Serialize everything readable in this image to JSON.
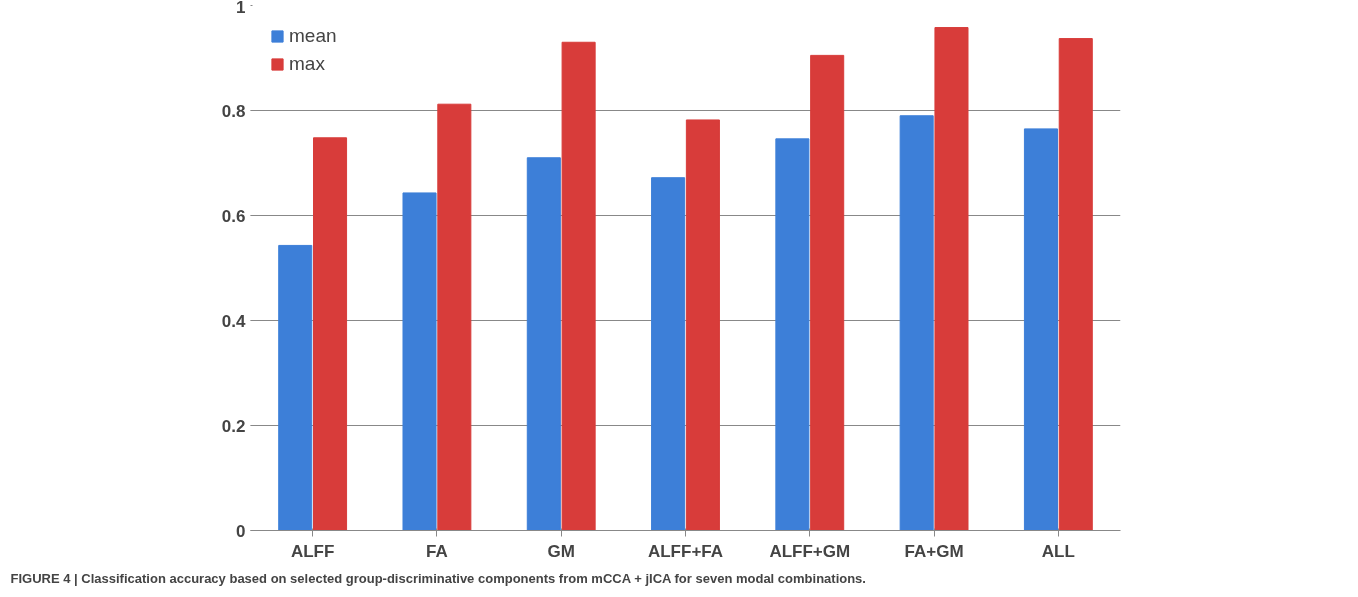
{
  "chart_data": {
    "type": "bar",
    "categories": [
      "ALFF",
      "FA",
      "GM",
      "ALFF+FA",
      "ALFF+GM",
      "FA+GM",
      "ALL"
    ],
    "series": [
      {
        "name": "mean",
        "color": "#3d7fd8",
        "values": [
          0.543,
          0.643,
          0.71,
          0.672,
          0.746,
          0.79,
          0.765
        ]
      },
      {
        "name": "max",
        "color": "#d83c3a",
        "values": [
          0.748,
          0.812,
          0.93,
          0.782,
          0.905,
          0.958,
          0.937
        ]
      }
    ],
    "ylim": [
      0,
      1
    ],
    "yticks": [
      0,
      0.2,
      0.4,
      0.6,
      0.8,
      1
    ],
    "grid": "y",
    "legend": "top left",
    "annotations": [
      "FIGURE 4 | Classification accuracy based on selected group-discriminative components from mCCA + jICA for seven modal combinations."
    ]
  }
}
